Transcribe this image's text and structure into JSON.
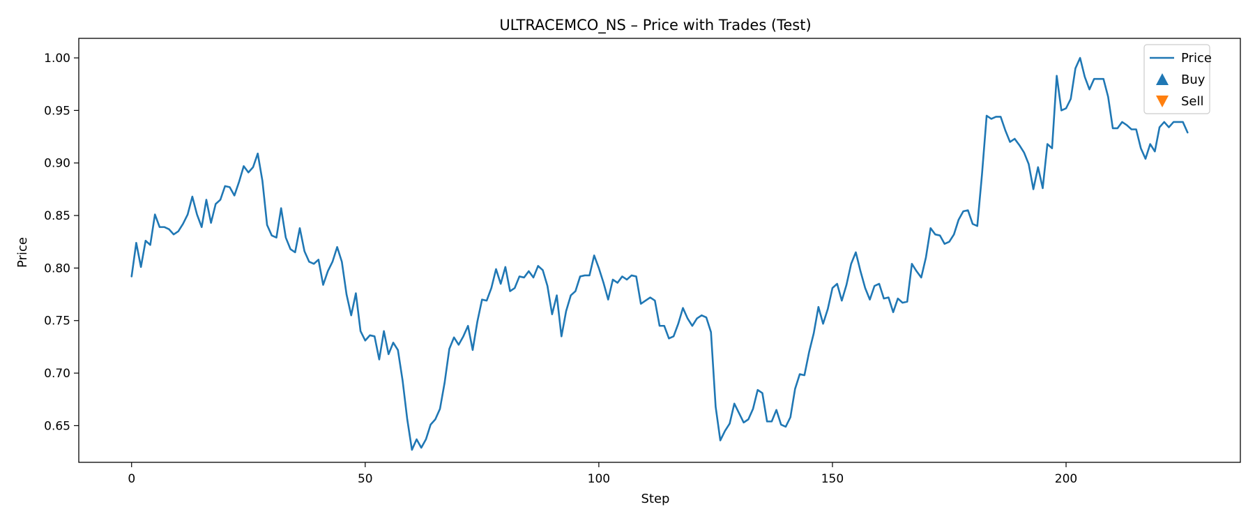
{
  "chart_data": {
    "type": "line",
    "title": "ULTRACEMCO_NS – Price with Trades (Test)",
    "xlabel": "Step",
    "ylabel": "Price",
    "xlim": [
      -11.3,
      237.3
    ],
    "ylim": [
      0.6151,
      1.0186
    ],
    "xticks": [
      0,
      50,
      100,
      150,
      200
    ],
    "yticks": [
      0.65,
      0.7,
      0.75,
      0.8,
      0.85,
      0.9,
      0.95,
      1.0
    ],
    "ytick_labels": [
      "0.65",
      "0.70",
      "0.75",
      "0.80",
      "0.85",
      "0.90",
      "0.95",
      "1.00"
    ],
    "grid": false,
    "legend_position": "top-right",
    "legend": [
      {
        "label": "Price",
        "marker": "line",
        "color": "#1f77b4"
      },
      {
        "label": "Buy",
        "marker": "triangle-up",
        "color": "#1f77b4"
      },
      {
        "label": "Sell",
        "marker": "triangle-down",
        "color": "#ff7f0e"
      }
    ],
    "series": [
      {
        "name": "Price",
        "color": "#1f77b4",
        "x_start": 0,
        "x_step": 1,
        "values": [
          0.792,
          0.824,
          0.801,
          0.826,
          0.822,
          0.851,
          0.839,
          0.839,
          0.837,
          0.832,
          0.835,
          0.842,
          0.851,
          0.868,
          0.851,
          0.839,
          0.865,
          0.843,
          0.861,
          0.865,
          0.878,
          0.877,
          0.869,
          0.882,
          0.897,
          0.891,
          0.896,
          0.909,
          0.883,
          0.841,
          0.831,
          0.829,
          0.857,
          0.829,
          0.818,
          0.815,
          0.838,
          0.816,
          0.806,
          0.804,
          0.808,
          0.784,
          0.797,
          0.806,
          0.82,
          0.806,
          0.775,
          0.755,
          0.776,
          0.74,
          0.731,
          0.736,
          0.735,
          0.713,
          0.74,
          0.718,
          0.729,
          0.722,
          0.693,
          0.656,
          0.627,
          0.637,
          0.629,
          0.637,
          0.651,
          0.656,
          0.666,
          0.691,
          0.723,
          0.734,
          0.727,
          0.735,
          0.745,
          0.722,
          0.749,
          0.77,
          0.769,
          0.781,
          0.799,
          0.785,
          0.801,
          0.778,
          0.781,
          0.792,
          0.791,
          0.797,
          0.791,
          0.802,
          0.798,
          0.783,
          0.756,
          0.774,
          0.735,
          0.759,
          0.774,
          0.778,
          0.792,
          0.793,
          0.793,
          0.812,
          0.8,
          0.786,
          0.77,
          0.789,
          0.786,
          0.792,
          0.789,
          0.793,
          0.792,
          0.766,
          0.769,
          0.772,
          0.769,
          0.745,
          0.745,
          0.733,
          0.735,
          0.747,
          0.762,
          0.752,
          0.745,
          0.752,
          0.755,
          0.753,
          0.739,
          0.668,
          0.636,
          0.645,
          0.652,
          0.671,
          0.662,
          0.653,
          0.656,
          0.666,
          0.684,
          0.681,
          0.654,
          0.654,
          0.665,
          0.651,
          0.649,
          0.658,
          0.685,
          0.699,
          0.698,
          0.72,
          0.738,
          0.763,
          0.747,
          0.761,
          0.781,
          0.785,
          0.769,
          0.784,
          0.804,
          0.815,
          0.797,
          0.781,
          0.77,
          0.783,
          0.785,
          0.771,
          0.772,
          0.758,
          0.771,
          0.767,
          0.768,
          0.804,
          0.797,
          0.791,
          0.81,
          0.838,
          0.832,
          0.831,
          0.823,
          0.825,
          0.832,
          0.846,
          0.854,
          0.855,
          0.842,
          0.84,
          0.889,
          0.945,
          0.942,
          0.944,
          0.944,
          0.931,
          0.92,
          0.923,
          0.917,
          0.91,
          0.899,
          0.875,
          0.896,
          0.876,
          0.918,
          0.914,
          0.983,
          0.95,
          0.952,
          0.961,
          0.99,
          1.0,
          0.982,
          0.97,
          0.98,
          0.98,
          0.98,
          0.963,
          0.933,
          0.933,
          0.939,
          0.936,
          0.932,
          0.932,
          0.914,
          0.904,
          0.918,
          0.911,
          0.934,
          0.939,
          0.934,
          0.939,
          0.939,
          0.939,
          0.929
        ]
      }
    ]
  }
}
